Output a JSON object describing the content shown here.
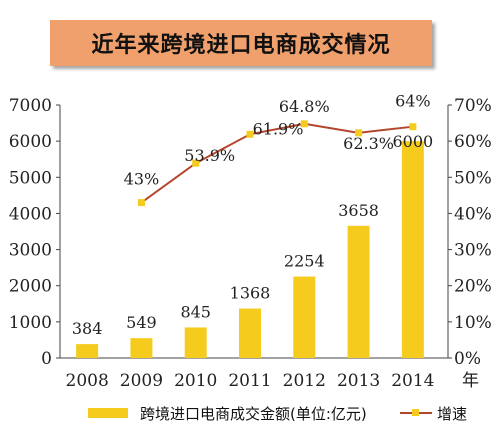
{
  "chart_data": {
    "type": "bar+line",
    "title": "近年来跨境进口电商成交情况",
    "categories": [
      "2008",
      "2009",
      "2010",
      "2011",
      "2012",
      "2013",
      "2014"
    ],
    "x_unit": "年",
    "bar_series": {
      "name": "跨境进口电商成交金额(单位:亿元)",
      "values": [
        384,
        549,
        845,
        1368,
        2254,
        3658,
        6000
      ],
      "color": "#f5cc1e"
    },
    "line_series": {
      "name": "增速",
      "values": [
        null,
        43,
        53.9,
        61.9,
        64.8,
        62.3,
        64
      ],
      "labels": [
        "",
        "43%",
        "53.9%",
        "61.9%",
        "64.8%",
        "62.3%",
        "64%"
      ],
      "color": "#b5462e",
      "marker_color": "#f5cc1e"
    },
    "y_left": {
      "min": 0,
      "max": 7000,
      "ticks": [
        0,
        1000,
        2000,
        3000,
        4000,
        5000,
        6000,
        7000
      ]
    },
    "y_right": {
      "min": 0,
      "max": 70,
      "ticks": [
        "0%",
        "10%",
        "20%",
        "30%",
        "40%",
        "50%",
        "60%",
        "70%"
      ]
    },
    "legend": "bottom"
  }
}
